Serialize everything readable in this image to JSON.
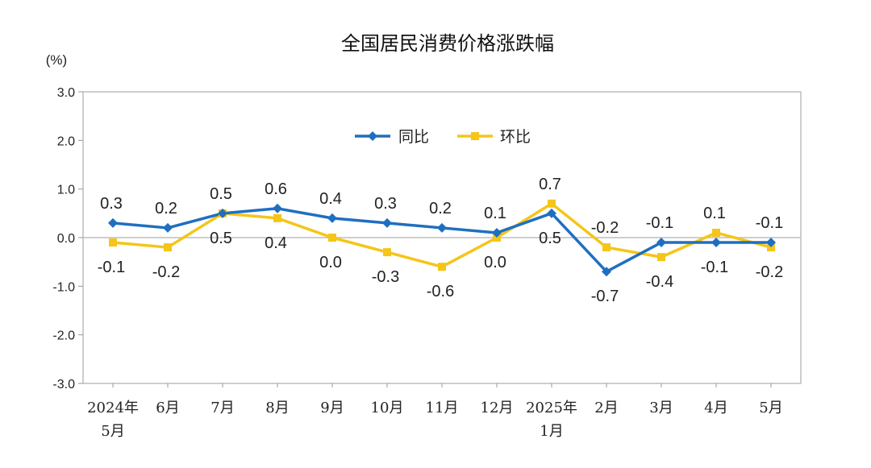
{
  "chart_data": {
    "type": "line",
    "title": "全国居民消费价格涨跌幅",
    "unit": "(%)",
    "ylim": [
      -3.0,
      3.0
    ],
    "yticks": [
      "3.0",
      "2.0",
      "1.0",
      "0.0",
      "-1.0",
      "-2.0",
      "-3.0"
    ],
    "categories": [
      [
        "2024年",
        "5月"
      ],
      [
        "6月"
      ],
      [
        "7月"
      ],
      [
        "8月"
      ],
      [
        "9月"
      ],
      [
        "10月"
      ],
      [
        "11月"
      ],
      [
        "12月"
      ],
      [
        "2025年",
        "1月"
      ],
      [
        "2月"
      ],
      [
        "3月"
      ],
      [
        "4月"
      ],
      [
        "5月"
      ]
    ],
    "legend": {
      "position": "top-center"
    },
    "grid": false,
    "series": [
      {
        "name": "同比",
        "color": "#1f6fc0",
        "marker": "diamond",
        "values": [
          0.3,
          0.2,
          0.5,
          0.6,
          0.4,
          0.3,
          0.2,
          0.1,
          0.5,
          -0.7,
          -0.1,
          -0.1,
          -0.1
        ],
        "labels": [
          "0.3",
          "0.2",
          "0.5",
          "0.6",
          "0.4",
          "0.3",
          "0.2",
          "0.1",
          "0.5",
          "-0.7",
          "-0.1",
          "-0.1",
          "-0.1"
        ]
      },
      {
        "name": "环比",
        "color": "#f5c518",
        "marker": "square",
        "values": [
          -0.1,
          -0.2,
          0.5,
          0.4,
          0.0,
          -0.3,
          -0.6,
          0.0,
          0.7,
          -0.2,
          -0.4,
          0.1,
          -0.2
        ],
        "labels": [
          "-0.1",
          "-0.2",
          "0.5",
          "0.4",
          "0.0",
          "-0.3",
          "-0.6",
          "0.0",
          "0.7",
          "-0.2",
          "-0.4",
          "0.1",
          "-0.2"
        ]
      }
    ]
  }
}
